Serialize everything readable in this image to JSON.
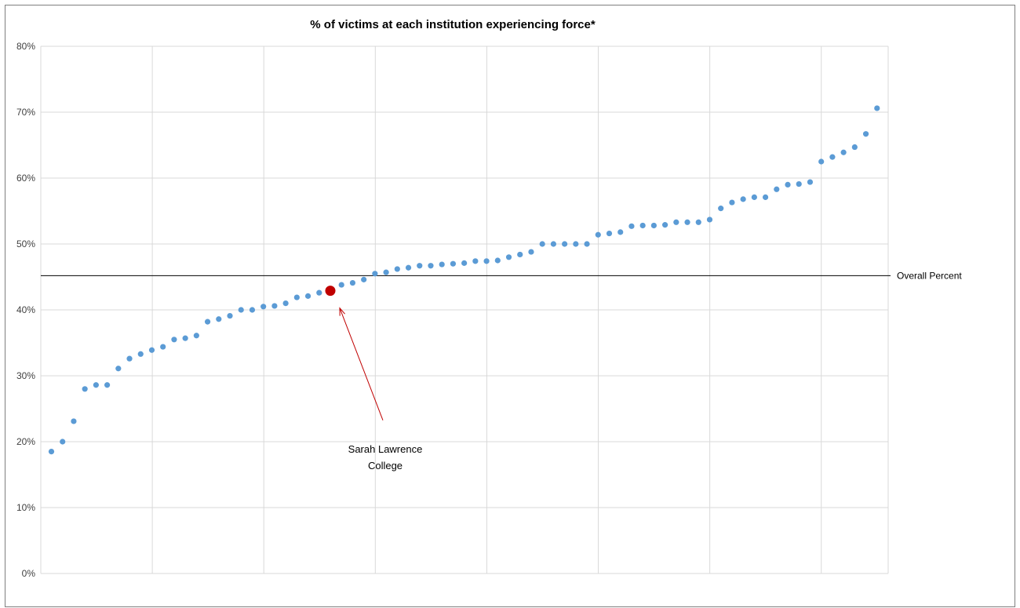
{
  "chart_data": {
    "type": "scatter",
    "title": "% of victims at each institution experiencing force*",
    "xlabel": "",
    "ylabel": "",
    "ylim": [
      0,
      0.8
    ],
    "y_ticks": [
      0,
      0.1,
      0.2,
      0.3,
      0.4,
      0.5,
      0.6,
      0.7,
      0.8
    ],
    "y_tick_labels": [
      "0%",
      "10%",
      "20%",
      "30%",
      "40%",
      "50%",
      "60%",
      "70%",
      "80%"
    ],
    "x_count": 76,
    "x_gridlines": 7,
    "grid": true,
    "values": [
      0.185,
      0.2,
      0.231,
      0.28,
      0.286,
      0.286,
      0.311,
      0.326,
      0.333,
      0.339,
      0.344,
      0.355,
      0.357,
      0.361,
      0.382,
      0.386,
      0.391,
      0.4,
      0.4,
      0.405,
      0.406,
      0.41,
      0.419,
      0.421,
      0.426,
      0.429,
      0.438,
      0.441,
      0.446,
      0.455,
      0.457,
      0.462,
      0.464,
      0.467,
      0.467,
      0.469,
      0.47,
      0.471,
      0.474,
      0.474,
      0.475,
      0.48,
      0.484,
      0.488,
      0.5,
      0.5,
      0.5,
      0.5,
      0.5,
      0.514,
      0.516,
      0.518,
      0.527,
      0.528,
      0.528,
      0.529,
      0.533,
      0.533,
      0.533,
      0.537,
      0.554,
      0.563,
      0.568,
      0.571,
      0.571,
      0.583,
      0.59,
      0.591,
      0.594,
      0.625,
      0.632,
      0.639,
      0.647,
      0.667,
      0.706
    ],
    "highlight_index": 25,
    "highlight_label": "Sarah Lawrence College",
    "reference_line": {
      "value": 0.452,
      "label": "Overall Percent"
    },
    "colors": {
      "points": "#5b9bd5",
      "highlight": "#c00000",
      "arrow": "#c00000",
      "reference": "#000000",
      "grid": "#d9d9d9"
    }
  }
}
